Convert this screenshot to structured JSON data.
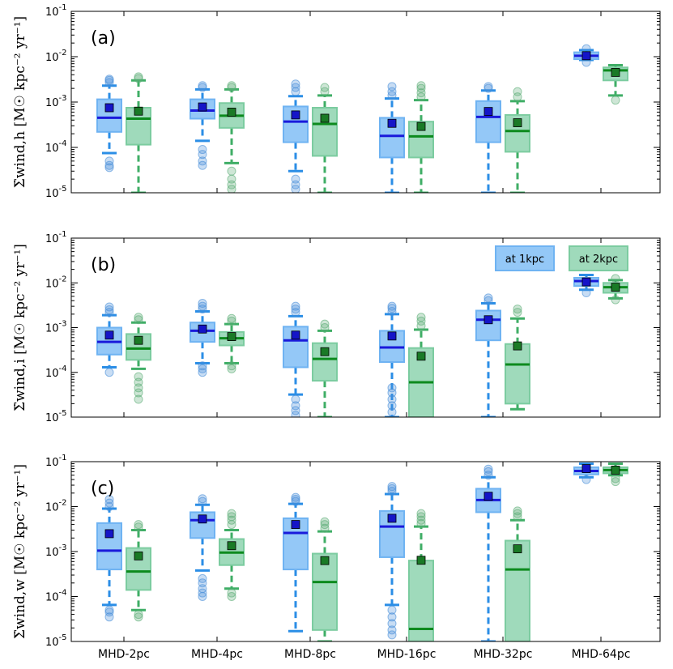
{
  "chart_data": {
    "type": "box",
    "categories": [
      "MHD-2pc",
      "MHD-4pc",
      "MHD-8pc",
      "MHD-16pc",
      "MHD-32pc",
      "MHD-64pc"
    ],
    "yscale": "log",
    "ylim": [
      1e-05,
      0.1
    ],
    "yticks": [
      "10-5",
      "10-4",
      "10-3",
      "10-2",
      "10-1"
    ],
    "legend": {
      "placement": "top-right",
      "panel": 1,
      "entries": [
        {
          "label": "at 1kpc",
          "color": "#4da3f5"
        },
        {
          "label": "at 2kpc",
          "color": "#5cbf85"
        }
      ]
    },
    "series_colors": {
      "s1": {
        "fill": "#94c8f7",
        "edge": "#6fb3f2",
        "median": "#1a1adb",
        "mean": "#1515c8",
        "whisker": "#2b8ee6",
        "flier": "#4a90d9"
      },
      "s2": {
        "fill": "#9fdabb",
        "edge": "#7ccca0",
        "median": "#0d8a1e",
        "mean": "#1a7a26",
        "whisker": "#3fae66",
        "flier": "#5cad77"
      }
    },
    "panels": [
      {
        "label": "(a)",
        "ylabel": "Σ̇wind,h [M☉ kpc⁻² yr⁻¹]",
        "series": [
          {
            "name": "at 1kpc",
            "boxes": [
              {
                "q1": 0.00022,
                "median": 0.00045,
                "q3": 0.00115,
                "wlo": 7.5e-05,
                "whi": 0.0023,
                "mean": 0.00075,
                "fliers_lo": [
                  5e-05,
                  4e-05,
                  3.6e-05
                ],
                "fliers_hi": [
                  0.0027,
                  0.003,
                  0.0032
                ]
              },
              {
                "q1": 0.00043,
                "median": 0.00065,
                "q3": 0.00115,
                "wlo": 0.00014,
                "whi": 0.0019,
                "mean": 0.00078,
                "fliers_lo": [
                  9e-05,
                  7e-05,
                  5e-05,
                  4e-05
                ],
                "fliers_hi": [
                  0.0021,
                  0.0023
                ]
              },
              {
                "q1": 0.00013,
                "median": 0.00037,
                "q3": 0.0008,
                "wlo": 3e-05,
                "whi": 0.00135,
                "mean": 0.00052,
                "fliers_lo": [
                  2e-05,
                  1.5e-05,
                  1.2e-05
                ],
                "fliers_hi": [
                  0.0017,
                  0.0021,
                  0.0025
                ]
              },
              {
                "q1": 6e-05,
                "median": 0.00018,
                "q3": 0.00045,
                "wlo": 1e-05,
                "whi": 0.0012,
                "mean": 0.00034,
                "fliers_lo": [],
                "fliers_hi": [
                  0.0014,
                  0.0017,
                  0.0022
                ]
              },
              {
                "q1": 0.00013,
                "median": 0.00047,
                "q3": 0.00105,
                "wlo": 1e-05,
                "whi": 0.0018,
                "mean": 0.00062,
                "fliers_lo": [],
                "fliers_hi": [
                  0.002,
                  0.0022
                ]
              },
              {
                "q1": 0.0088,
                "median": 0.0105,
                "q3": 0.0125,
                "wlo": 0.0085,
                "whi": 0.014,
                "mean": 0.0105,
                "fliers_lo": [
                  0.0075
                ],
                "fliers_hi": [
                  0.015
                ]
              }
            ]
          },
          {
            "name": "at 2kpc",
            "boxes": [
              {
                "q1": 0.000115,
                "median": 0.00043,
                "q3": 0.00075,
                "wlo": 1e-05,
                "whi": 0.003,
                "mean": 0.00063,
                "fliers_lo": [],
                "fliers_hi": [
                  0.0033,
                  0.0036
                ]
              },
              {
                "q1": 0.00027,
                "median": 0.0005,
                "q3": 0.00095,
                "wlo": 4.5e-05,
                "whi": 0.0019,
                "mean": 0.0006,
                "fliers_lo": [
                  3e-05,
                  2e-05,
                  1.5e-05,
                  1.2e-05
                ],
                "fliers_hi": [
                  0.0021,
                  0.0023
                ]
              },
              {
                "q1": 6.5e-05,
                "median": 0.00033,
                "q3": 0.00075,
                "wlo": 1e-05,
                "whi": 0.0014,
                "mean": 0.00044,
                "fliers_lo": [],
                "fliers_hi": [
                  0.0017,
                  0.0021
                ]
              },
              {
                "q1": 6e-05,
                "median": 0.000175,
                "q3": 0.00037,
                "wlo": 1e-05,
                "whi": 0.0011,
                "mean": 0.00029,
                "fliers_lo": [],
                "fliers_hi": [
                  0.0013,
                  0.0016,
                  0.002,
                  0.0023
                ]
              },
              {
                "q1": 8e-05,
                "median": 0.00023,
                "q3": 0.00052,
                "wlo": 1e-05,
                "whi": 0.00105,
                "mean": 0.00035,
                "fliers_lo": [],
                "fliers_hi": [
                  0.0013,
                  0.0017
                ]
              },
              {
                "q1": 0.003,
                "median": 0.005,
                "q3": 0.0058,
                "wlo": 0.0014,
                "whi": 0.0065,
                "mean": 0.0045,
                "fliers_lo": [
                  0.0011
                ],
                "fliers_hi": []
              }
            ]
          }
        ]
      },
      {
        "label": "(b)",
        "ylabel": "Σ̇wind,i [M☉ kpc⁻² yr⁻¹]",
        "series": [
          {
            "name": "at 1kpc",
            "boxes": [
              {
                "q1": 0.00025,
                "median": 0.00048,
                "q3": 0.001,
                "wlo": 0.00013,
                "whi": 0.0019,
                "mean": 0.00068,
                "fliers_lo": [
                  0.0001
                ],
                "fliers_hi": [
                  0.0022,
                  0.0025,
                  0.0029
                ]
              },
              {
                "q1": 0.00048,
                "median": 0.00085,
                "q3": 0.0013,
                "wlo": 0.00016,
                "whi": 0.0023,
                "mean": 0.00093,
                "fliers_lo": [
                  0.00014,
                  0.00012,
                  0.0001
                ],
                "fliers_hi": [
                  0.0026,
                  0.003,
                  0.0035
                ]
              },
              {
                "q1": 0.00013,
                "median": 0.00052,
                "q3": 0.00105,
                "wlo": 3.2e-05,
                "whi": 0.0018,
                "mean": 0.00068,
                "fliers_lo": [
                  2.5e-05,
                  1.8e-05,
                  1.4e-05,
                  1.1e-05
                ],
                "fliers_hi": [
                  0.0022,
                  0.0026,
                  0.003
                ]
              },
              {
                "q1": 0.00017,
                "median": 0.00036,
                "q3": 0.00085,
                "wlo": 1e-05,
                "whi": 0.002,
                "mean": 0.00065,
                "fliers_lo": [
                  4.5e-05,
                  3.5e-05,
                  2.5e-05,
                  1.8e-05,
                  1.3e-05
                ],
                "fliers_hi": [
                  0.0023,
                  0.0027,
                  0.003
                ]
              },
              {
                "q1": 0.00052,
                "median": 0.0015,
                "q3": 0.0024,
                "wlo": 1e-05,
                "whi": 0.0035,
                "mean": 0.0015,
                "fliers_lo": [],
                "fliers_hi": [
                  0.004,
                  0.0046
                ]
              },
              {
                "q1": 0.0085,
                "median": 0.011,
                "q3": 0.013,
                "wlo": 0.007,
                "whi": 0.015,
                "mean": 0.0105,
                "fliers_lo": [
                  0.006
                ],
                "fliers_hi": []
              }
            ]
          },
          {
            "name": "at 2kpc",
            "boxes": [
              {
                "q1": 0.00019,
                "median": 0.00034,
                "q3": 0.00072,
                "wlo": 0.00012,
                "whi": 0.0013,
                "mean": 0.00052,
                "fliers_lo": [
                  8e-05,
                  6e-05,
                  4.5e-05,
                  3.5e-05,
                  2.5e-05
                ],
                "fliers_hi": [
                  0.0015,
                  0.0017
                ]
              },
              {
                "q1": 0.0004,
                "median": 0.00058,
                "q3": 0.0008,
                "wlo": 0.00016,
                "whi": 0.0012,
                "mean": 0.00063,
                "fliers_lo": [
                  0.00014,
                  0.00012
                ],
                "fliers_hi": [
                  0.0014,
                  0.0016
                ]
              },
              {
                "q1": 6.5e-05,
                "median": 0.0002,
                "q3": 0.00045,
                "wlo": 1e-05,
                "whi": 0.00085,
                "mean": 0.00029,
                "fliers_lo": [],
                "fliers_hi": [
                  0.001,
                  0.0012
                ]
              },
              {
                "q1": 1e-05,
                "median": 6e-05,
                "q3": 0.00035,
                "wlo": 1e-05,
                "whi": 0.0009,
                "mean": 0.00023,
                "fliers_lo": [],
                "fliers_hi": [
                  0.0011,
                  0.0014,
                  0.0017
                ]
              },
              {
                "q1": 2e-05,
                "median": 0.00015,
                "q3": 0.00043,
                "wlo": 1.5e-05,
                "whi": 0.0016,
                "mean": 0.00039,
                "fliers_lo": [],
                "fliers_hi": [
                  0.0022,
                  0.0026
                ]
              },
              {
                "q1": 0.006,
                "median": 0.008,
                "q3": 0.01,
                "wlo": 0.0045,
                "whi": 0.0115,
                "mean": 0.008,
                "fliers_lo": [
                  0.0042
                ],
                "fliers_hi": [
                  0.0125
                ]
              }
            ]
          }
        ]
      },
      {
        "label": "(c)",
        "ylabel": "Σ̇wind,w [M☉ kpc⁻² yr⁻¹]",
        "series": [
          {
            "name": "at 1kpc",
            "boxes": [
              {
                "q1": 0.0004,
                "median": 0.00105,
                "q3": 0.0043,
                "wlo": 6.5e-05,
                "whi": 0.009,
                "mean": 0.0025,
                "fliers_lo": [
                  5e-05,
                  4.5e-05,
                  3.5e-05
                ],
                "fliers_hi": [
                  0.01,
                  0.012,
                  0.0145
                ]
              },
              {
                "q1": 0.002,
                "median": 0.005,
                "q3": 0.0075,
                "wlo": 0.00038,
                "whi": 0.011,
                "mean": 0.0053,
                "fliers_lo": [
                  0.00025,
                  0.0002,
                  0.00015,
                  0.00012,
                  0.0001
                ],
                "fliers_hi": [
                  0.013,
                  0.015
                ]
              },
              {
                "q1": 0.0004,
                "median": 0.0026,
                "q3": 0.0055,
                "wlo": 1.7e-05,
                "whi": 0.0115,
                "mean": 0.004,
                "fliers_lo": [],
                "fliers_hi": [
                  0.013,
                  0.0145,
                  0.016
                ]
              },
              {
                "q1": 0.00075,
                "median": 0.0036,
                "q3": 0.008,
                "wlo": 6.5e-05,
                "whi": 0.019,
                "mean": 0.0055,
                "fliers_lo": [
                  5e-05,
                  3.5e-05,
                  2.5e-05,
                  1.8e-05,
                  1.4e-05
                ],
                "fliers_hi": [
                  0.022,
                  0.025,
                  0.028
                ]
              },
              {
                "q1": 0.0075,
                "median": 0.014,
                "q3": 0.025,
                "wlo": 1e-05,
                "whi": 0.045,
                "mean": 0.017,
                "fliers_lo": [],
                "fliers_hi": [
                  0.05,
                  0.06,
                  0.068
                ]
              },
              {
                "q1": 0.052,
                "median": 0.062,
                "q3": 0.075,
                "wlo": 0.045,
                "whi": 0.09,
                "mean": 0.07,
                "fliers_lo": [
                  0.04
                ],
                "fliers_hi": []
              }
            ]
          },
          {
            "name": "at 2kpc",
            "boxes": [
              {
                "q1": 0.00014,
                "median": 0.00036,
                "q3": 0.0012,
                "wlo": 5e-05,
                "whi": 0.003,
                "mean": 0.0008,
                "fliers_lo": [
                  4e-05,
                  3.5e-05
                ],
                "fliers_hi": [
                  0.0035,
                  0.004
                ]
              },
              {
                "q1": 0.0005,
                "median": 0.00095,
                "q3": 0.0019,
                "wlo": 0.00015,
                "whi": 0.003,
                "mean": 0.00135,
                "fliers_lo": [
                  0.00012,
                  0.0001
                ],
                "fliers_hi": [
                  0.004,
                  0.005,
                  0.006,
                  0.007
                ]
              },
              {
                "q1": 1.8e-05,
                "median": 0.00021,
                "q3": 0.0009,
                "wlo": 1e-05,
                "whi": 0.0028,
                "mean": 0.00063,
                "fliers_lo": [],
                "fliers_hi": [
                  0.0033,
                  0.004,
                  0.0046
                ]
              },
              {
                "q1": 1e-05,
                "median": 1.9e-05,
                "q3": 0.00063,
                "wlo": 1e-05,
                "whi": 0.0036,
                "mean": 0.00064,
                "fliers_lo": [],
                "fliers_hi": [
                  0.0042,
                  0.005,
                  0.006,
                  0.007
                ]
              },
              {
                "q1": 1e-05,
                "median": 0.0004,
                "q3": 0.00175,
                "wlo": 1e-05,
                "whi": 0.005,
                "mean": 0.00115,
                "fliers_lo": [],
                "fliers_hi": [
                  0.006,
                  0.007,
                  0.008
                ]
              },
              {
                "q1": 0.055,
                "median": 0.065,
                "q3": 0.075,
                "wlo": 0.05,
                "whi": 0.09,
                "mean": 0.065,
                "fliers_lo": [
                  0.042,
                  0.036
                ],
                "fliers_hi": []
              }
            ]
          }
        ]
      }
    ]
  }
}
